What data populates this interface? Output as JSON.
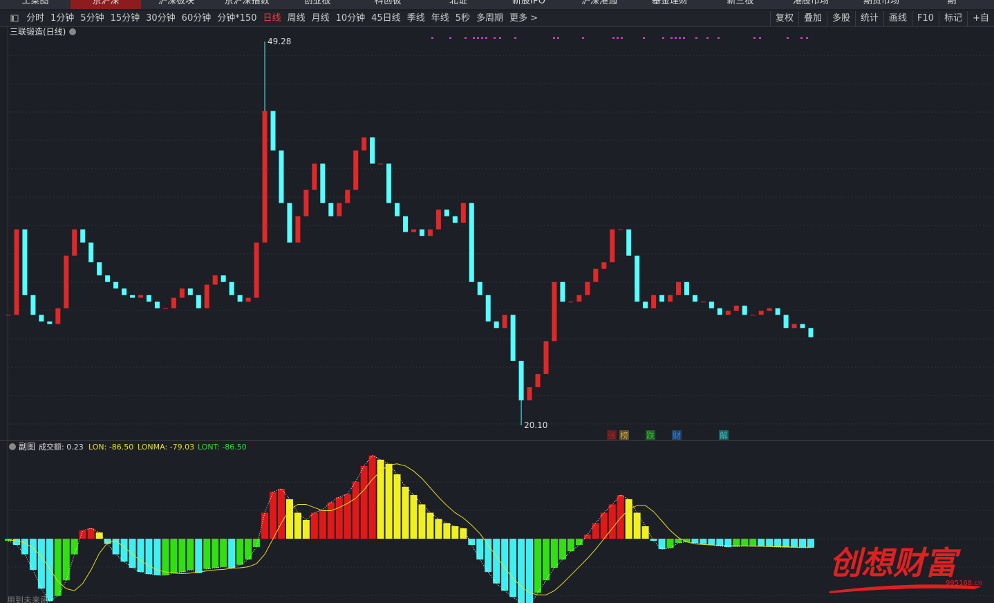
{
  "nav": [
    "工菜图",
    "京沪深",
    "沪深板块",
    "京沪深指数",
    "创业板",
    "科创板",
    "北证",
    "新股IPO",
    "沪深港通",
    "基金理财",
    "新三板",
    "港股市场",
    "期货市场",
    "期"
  ],
  "toolbar": {
    "periods": [
      "分时",
      "1分钟",
      "5分钟",
      "15分钟",
      "30分钟",
      "60分钟",
      "分钟*150",
      "日线",
      "周线",
      "月线",
      "10分钟",
      "45日线",
      "季线",
      "年线",
      "5秒",
      "多周期",
      "更多 >"
    ],
    "active": "日线",
    "tools": [
      "复权",
      "叠加",
      "多股",
      "统计",
      "画线",
      "F10",
      "标记",
      "+自"
    ]
  },
  "chart": {
    "title": "三联锻造(日线)",
    "ylim": [
      19,
      50.44
    ],
    "close": [
      28.5,
      35,
      30,
      28.5,
      28,
      27.8,
      29,
      33,
      35,
      34,
      32.5,
      31.5,
      31,
      30.5,
      30,
      29.8,
      30,
      29.5,
      29,
      29,
      29.8,
      30.5,
      30,
      29,
      30.8,
      31.5,
      31,
      30,
      29.5,
      29.8,
      34,
      44,
      41,
      37,
      34,
      36,
      38,
      40,
      37,
      36,
      37,
      38,
      41,
      42,
      40,
      40,
      37,
      36,
      34.8,
      35,
      34.5,
      35,
      36.5,
      36,
      35.5,
      37,
      31,
      30,
      28,
      27.5,
      28.5,
      25,
      22,
      23,
      24,
      26.5,
      31,
      29.5,
      29.5,
      30,
      31,
      32,
      32.5,
      35,
      35,
      33,
      29.5,
      29,
      30,
      29.5,
      30,
      31,
      30,
      29.5,
      29.5,
      29,
      28.5,
      28.8,
      29.2,
      28.5,
      28.5,
      28.8,
      29,
      28.5,
      27.5,
      27.8,
      27.5,
      26.8
    ],
    "extremes": [
      {
        "value": 49.28,
        "label": "49.28"
      },
      {
        "value": 20.1,
        "label": "20.10"
      }
    ],
    "markers": [
      "张",
      "榜",
      "跌",
      "财",
      "解"
    ]
  },
  "indicator": {
    "name": "副图",
    "labels": [
      "成交额: 0.23",
      "LON: -86.50",
      "LONMA: -79.03",
      "LONT: -86.50"
    ],
    "ylim": [
      -618,
      825
    ],
    "lon": [
      -20,
      -60,
      -150,
      -300,
      -480,
      -600,
      -550,
      -400,
      -150,
      80,
      100,
      60,
      -50,
      -150,
      -220,
      -280,
      -320,
      -340,
      -350,
      -350,
      -330,
      -320,
      -300,
      -330,
      -290,
      -280,
      -270,
      -280,
      -250,
      -200,
      -80,
      250,
      450,
      480,
      380,
      250,
      180,
      250,
      280,
      350,
      400,
      430,
      550,
      700,
      800,
      760,
      720,
      620,
      500,
      420,
      330,
      250,
      190,
      150,
      120,
      100,
      -60,
      -200,
      -320,
      -430,
      -500,
      -560,
      -620,
      -640,
      -520,
      -400,
      -280,
      -200,
      -120,
      -60,
      40,
      150,
      250,
      330,
      420,
      380,
      250,
      120,
      -20,
      -100,
      -90,
      -40,
      -30,
      -40,
      -50,
      -60,
      -70,
      -80,
      -75,
      -70,
      -70,
      -72,
      -75,
      -80,
      -82,
      -84,
      -86,
      -86.5
    ],
    "lonma": [
      -10,
      -20,
      -40,
      -90,
      -170,
      -290,
      -410,
      -480,
      -500,
      -430,
      -300,
      -140,
      -40,
      -20,
      -80,
      -150,
      -210,
      -260,
      -300,
      -320,
      -330,
      -335,
      -330,
      -320,
      -310,
      -300,
      -295,
      -285,
      -280,
      -270,
      -240,
      -150,
      0,
      150,
      280,
      330,
      330,
      300,
      270,
      270,
      300,
      340,
      390,
      470,
      570,
      650,
      710,
      720,
      700,
      650,
      580,
      490,
      400,
      320,
      250,
      200,
      130,
      50,
      -60,
      -170,
      -280,
      -380,
      -460,
      -520,
      -540,
      -540,
      -500,
      -430,
      -350,
      -270,
      -190,
      -100,
      0,
      100,
      200,
      280,
      320,
      320,
      260,
      170,
      80,
      10,
      -30,
      -50,
      -55,
      -60,
      -62,
      -65,
      -68,
      -70,
      -72,
      -73,
      -74,
      -76,
      -78,
      -80,
      -82,
      -79.03
    ],
    "footnote": "用到未来函"
  },
  "watermark": {
    "brand": "创想财富",
    "site": "995168.cn"
  }
}
